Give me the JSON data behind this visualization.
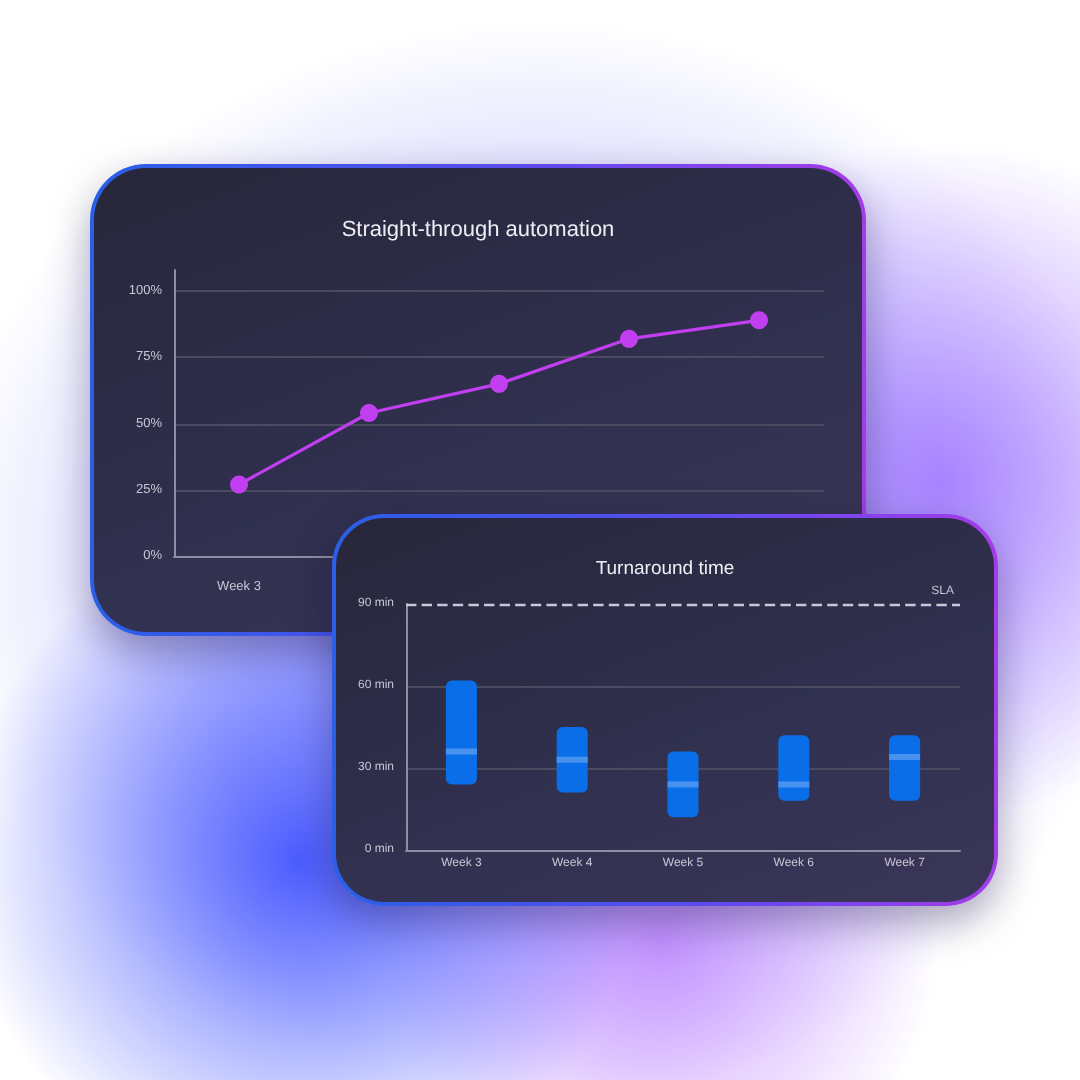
{
  "chart_data": [
    {
      "type": "line",
      "title": "Straight-through automation",
      "categories": [
        "Week 3",
        null,
        null,
        null,
        null
      ],
      "values": [
        27,
        54,
        65,
        82,
        89
      ],
      "color": "#c13ff0",
      "ylim": [
        0,
        108
      ],
      "yticks": [
        {
          "value": 0,
          "label": "0%"
        },
        {
          "value": 25,
          "label": "25%"
        },
        {
          "value": 50,
          "label": "50%"
        },
        {
          "value": 75,
          "label": "75%"
        },
        {
          "value": 100,
          "label": "100%"
        }
      ],
      "grid": "y",
      "marker": "circle"
    },
    {
      "type": "box",
      "title": "Turnaround time",
      "categories": [
        "Week 3",
        "Week 4",
        "Week 5",
        "Week 6",
        "Week 7"
      ],
      "series": [
        {
          "color": "#0b6ee9",
          "boxes": [
            {
              "low": 24,
              "q1": 24,
              "median": 36,
              "q3": 62,
              "high": 62
            },
            {
              "low": 21,
              "q1": 21,
              "median": 33,
              "q3": 45,
              "high": 45
            },
            {
              "low": 12,
              "q1": 12,
              "median": 24,
              "q3": 36,
              "high": 36
            },
            {
              "low": 18,
              "q1": 18,
              "median": 24,
              "q3": 42,
              "high": 42
            },
            {
              "low": 18,
              "q1": 18,
              "median": 34,
              "q3": 42,
              "high": 42
            }
          ]
        }
      ],
      "ylim": [
        0,
        90
      ],
      "yticks": [
        {
          "value": 0,
          "label": "0 min"
        },
        {
          "value": 30,
          "label": "30 min"
        },
        {
          "value": 60,
          "label": "60 min"
        },
        {
          "value": 90,
          "label": "90 min"
        }
      ],
      "grid": "y",
      "ref_lines": [
        {
          "axis": "y",
          "value": 90,
          "label": "SLA",
          "color": "#c9c7d6",
          "line_style": "dashed"
        }
      ]
    }
  ]
}
